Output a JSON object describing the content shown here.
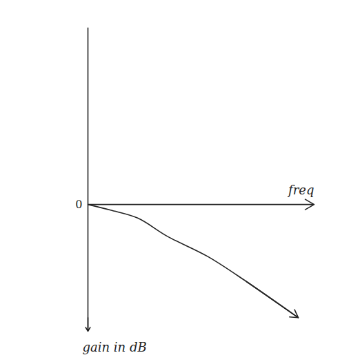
{
  "chart_data": {
    "type": "line",
    "x_label": "freq",
    "y_label": "gain in dB",
    "x": [
      0,
      1,
      2.2,
      3.5,
      5.3,
      7,
      9.3
    ],
    "values": [
      0,
      -0.25,
      -0.6,
      -1.4,
      -2.3,
      -3.4,
      -5.0
    ],
    "color": "#222222",
    "marker": "arrow",
    "xlim": [
      0,
      10
    ],
    "ylim": [
      -5.6,
      7.8
    ],
    "yticks": [
      0
    ],
    "tick_labels": "y",
    "grid": false
  }
}
